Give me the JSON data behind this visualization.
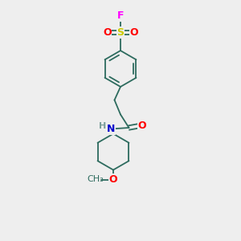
{
  "background_color": "#eeeeee",
  "bond_color": "#2d6b5e",
  "atom_colors": {
    "F": "#ff00ff",
    "S": "#cccc00",
    "O": "#ff0000",
    "N": "#0000cc",
    "H": "#7a9e9a"
  },
  "font_size": 9,
  "bond_width": 1.3
}
